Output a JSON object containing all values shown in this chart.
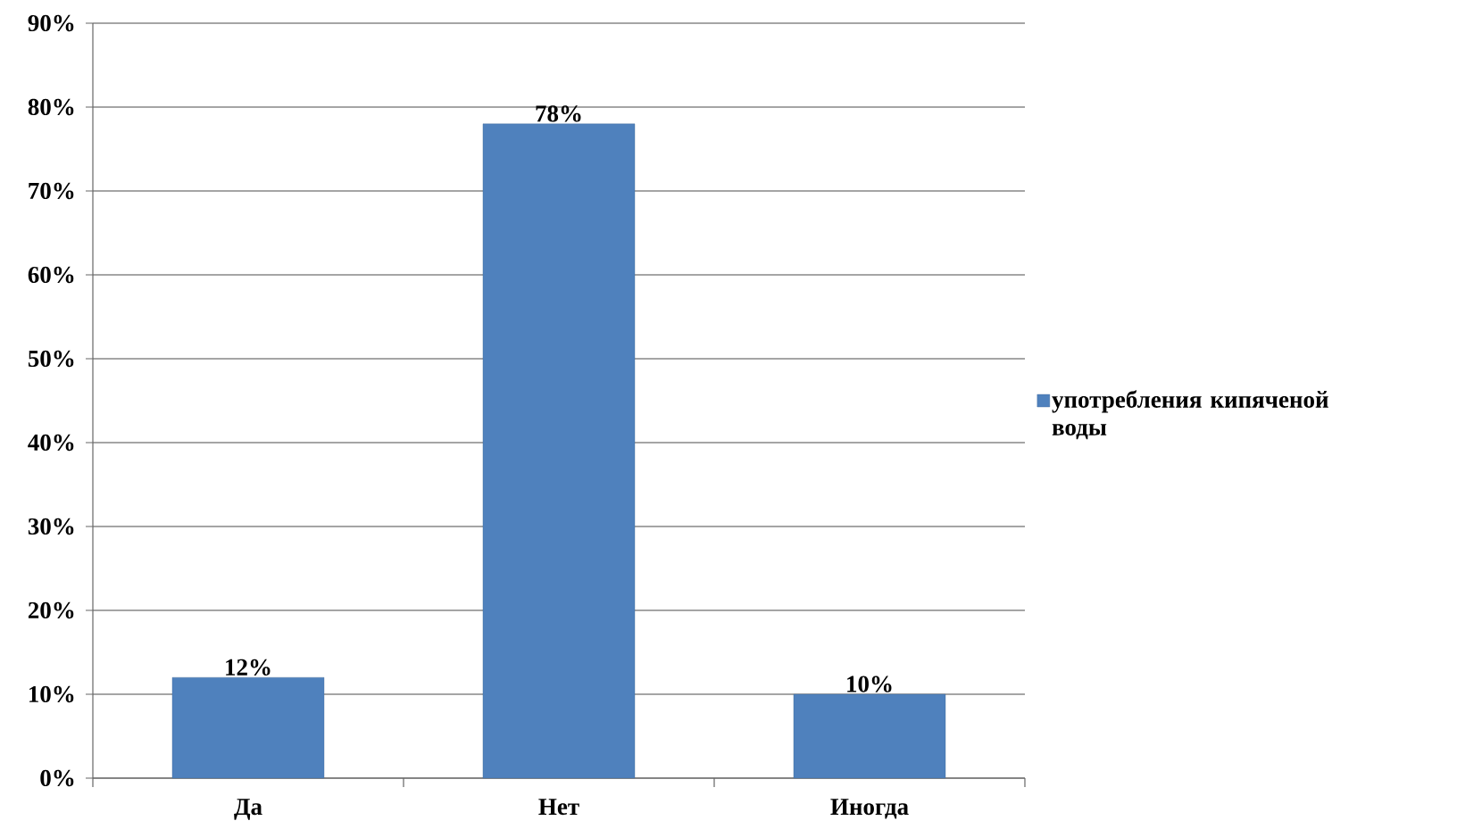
{
  "chart_data": {
    "type": "bar",
    "categories": [
      "Да",
      "Нет",
      "Иногда"
    ],
    "series": [
      {
        "name": "употребления кипяченой воды",
        "color": "#4f81bd",
        "values": [
          12,
          78,
          10
        ],
        "value_labels": [
          "12%",
          "78%",
          "10%"
        ]
      }
    ],
    "ylim": [
      0,
      90
    ],
    "yticks": [
      {
        "value": 0,
        "label": "0%"
      },
      {
        "value": 10,
        "label": "10%"
      },
      {
        "value": 20,
        "label": "20%"
      },
      {
        "value": 30,
        "label": "30%"
      },
      {
        "value": 40,
        "label": "40%"
      },
      {
        "value": 50,
        "label": "50%"
      },
      {
        "value": 60,
        "label": "60%"
      },
      {
        "value": 70,
        "label": "70%"
      },
      {
        "value": 80,
        "label": "80%"
      },
      {
        "value": 90,
        "label": "90%"
      }
    ],
    "grid": "y",
    "legend": "right"
  }
}
